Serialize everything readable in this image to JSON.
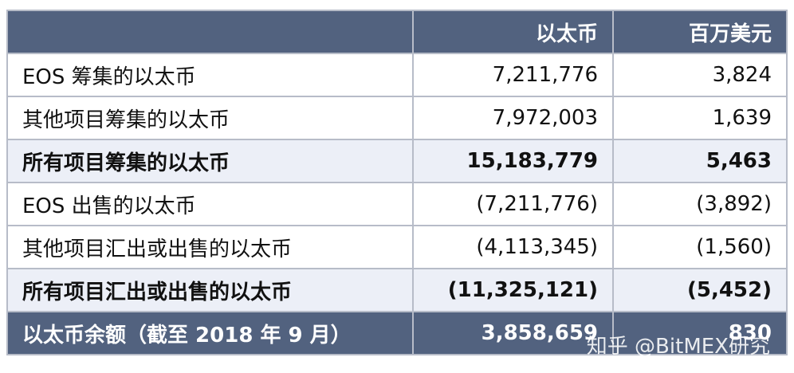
{
  "header": {
    "col_label": "",
    "col_eth": "以太币",
    "col_usd": "百万美元"
  },
  "rows": [
    {
      "label": "EOS 筹集的以太币",
      "eth": "7,211,776",
      "usd": "3,824"
    },
    {
      "label": "其他项目筹集的以太币",
      "eth": "7,972,003",
      "usd": "1,639"
    },
    {
      "label": "所有项目筹集的以太币",
      "eth": "15,183,779",
      "usd": "5,463"
    },
    {
      "label": "EOS 出售的以太币",
      "eth": "(7,211,776)",
      "usd": "(3,892)"
    },
    {
      "label": "其他项目汇出或出售的以太币",
      "eth": "(4,113,345)",
      "usd": "(1,560)"
    },
    {
      "label": "所有项目汇出或出售的以太币",
      "eth": "(11,325,121)",
      "usd": "(5,452)"
    }
  ],
  "footer": {
    "label": "以太币余额（截至 2018 年 9 月）",
    "eth": "3,858,659",
    "usd": "830"
  },
  "watermark": "知乎 @BitMEX研究",
  "colors": {
    "header_bg": "#52627f",
    "total_row_bg": "#eceff7",
    "border": "#b7bcc8"
  }
}
